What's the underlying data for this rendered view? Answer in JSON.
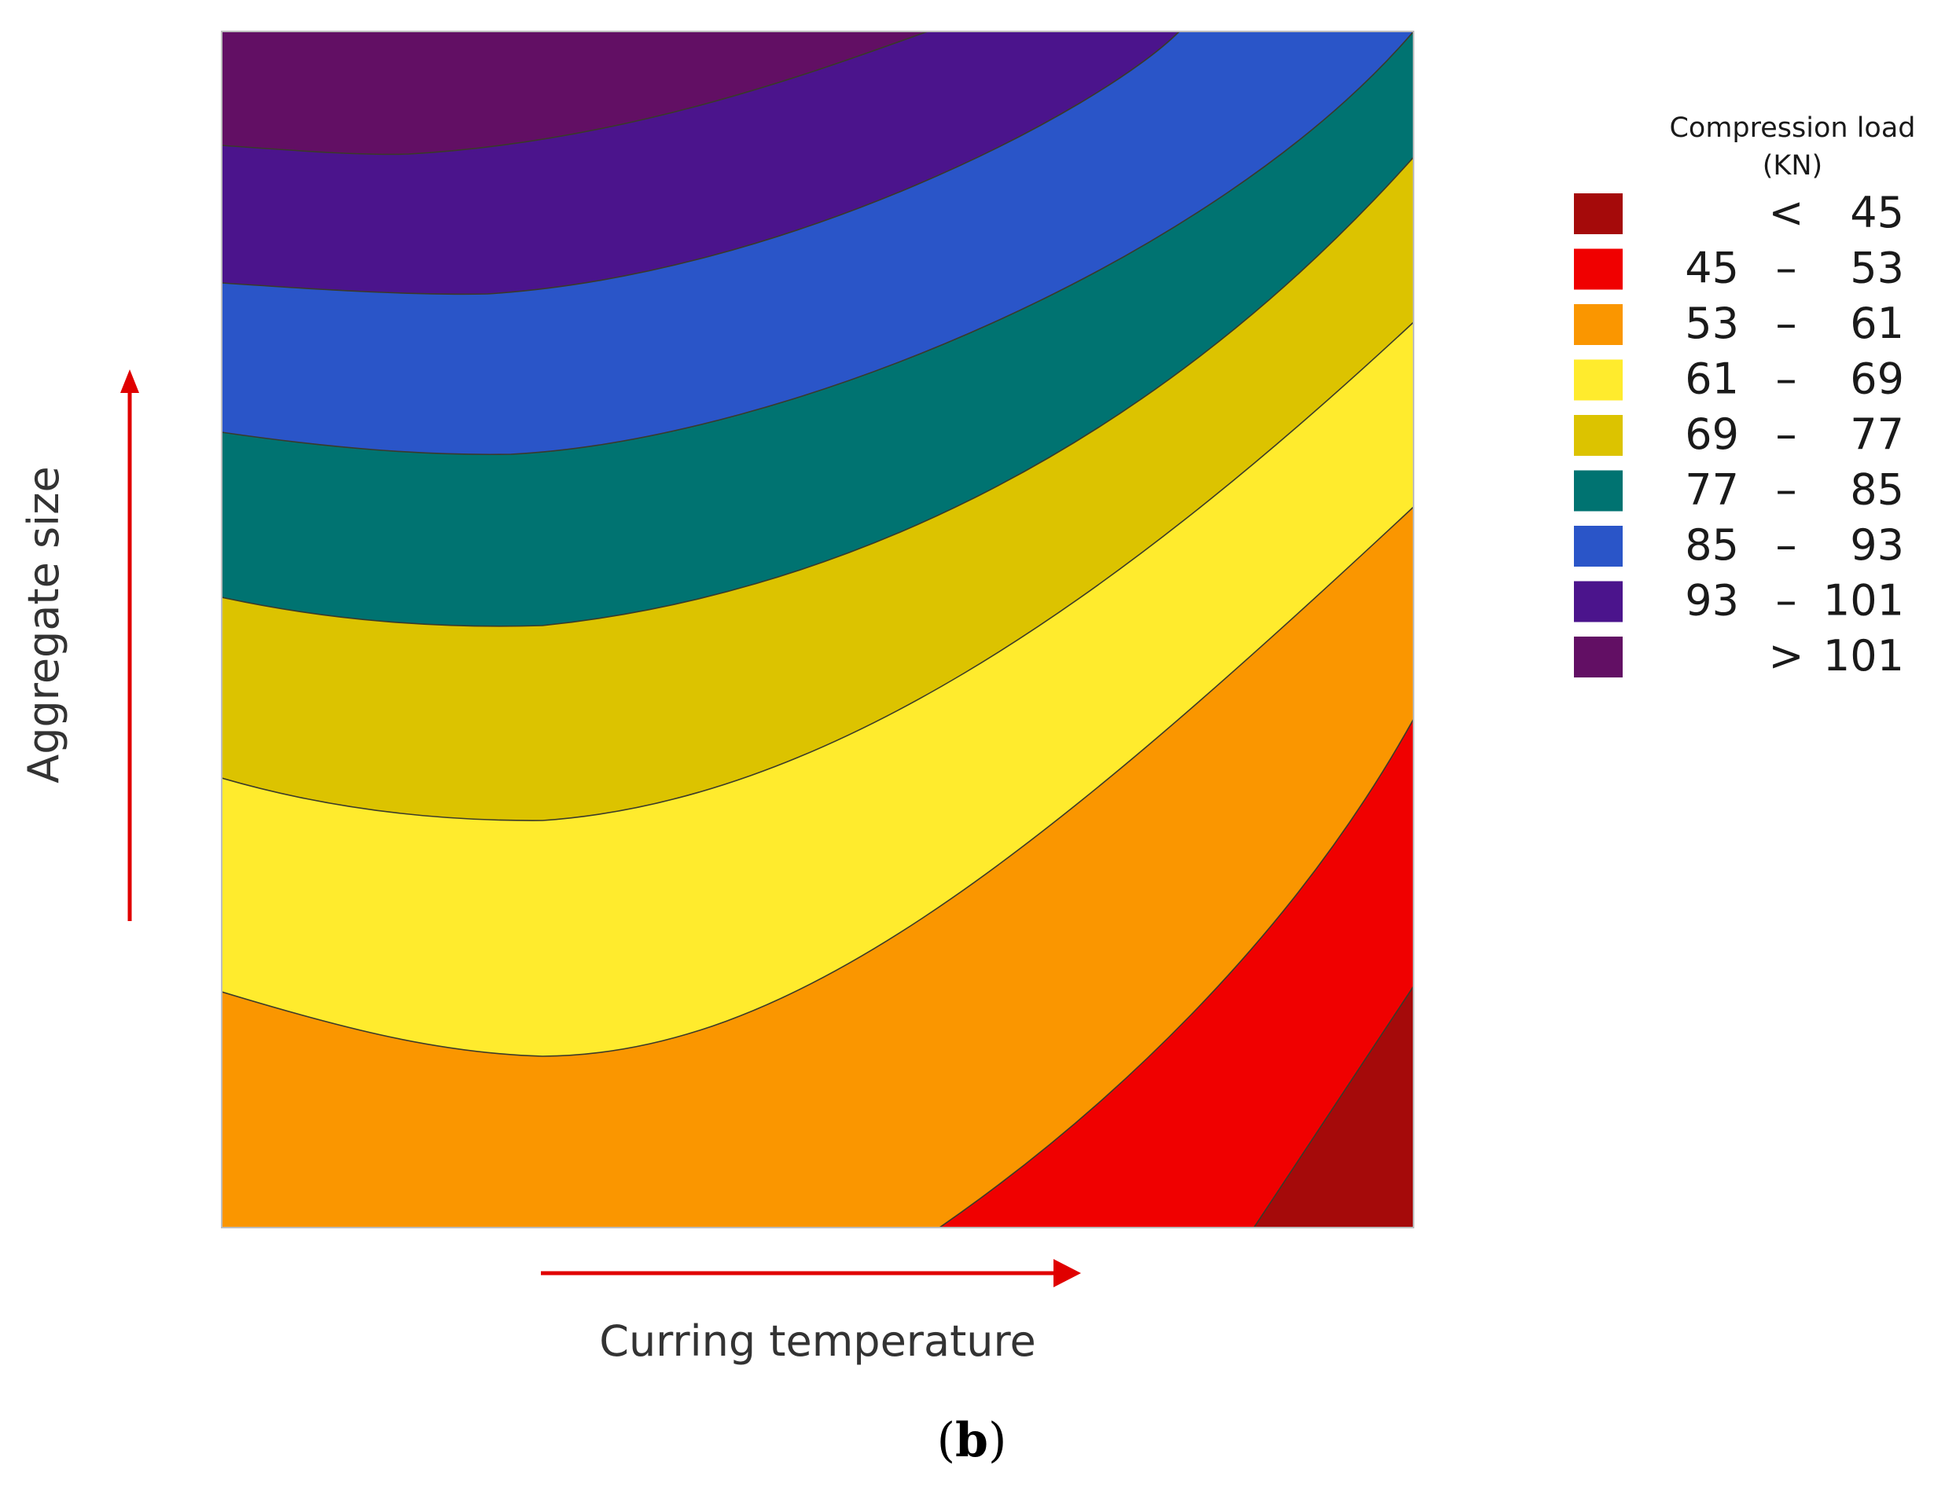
{
  "chart_data": {
    "type": "contour",
    "title": "",
    "xlabel": "Curring temperature",
    "ylabel": "Aggregate size",
    "panel_label": "(b)",
    "panel_label_letter": "b",
    "legend": {
      "title_line1": "Compression load",
      "title_line2": "(KN)",
      "placement": "right",
      "entries": [
        {
          "lo": "",
          "sep": "<",
          "hi": "45",
          "color": "#a50a0a"
        },
        {
          "lo": "45",
          "sep": "–",
          "hi": "53",
          "color": "#f00000"
        },
        {
          "lo": "53",
          "sep": "–",
          "hi": "61",
          "color": "#fa9600"
        },
        {
          "lo": "61",
          "sep": "–",
          "hi": "69",
          "color": "#ffeb2d"
        },
        {
          "lo": "69",
          "sep": "–",
          "hi": "77",
          "color": "#dcc300"
        },
        {
          "lo": "77",
          "sep": "–",
          "hi": "85",
          "color": "#007371"
        },
        {
          "lo": "85",
          "sep": "–",
          "hi": "93",
          "color": "#2a55c8"
        },
        {
          "lo": "93",
          "sep": "–",
          "hi": "101",
          "color": "#4b148c"
        },
        {
          "lo": "",
          "sep": ">",
          "hi": "101",
          "color": "#620f64"
        }
      ]
    },
    "levels": [
      45,
      53,
      61,
      69,
      77,
      85,
      93,
      101
    ],
    "arrow_color": "#e00000"
  }
}
